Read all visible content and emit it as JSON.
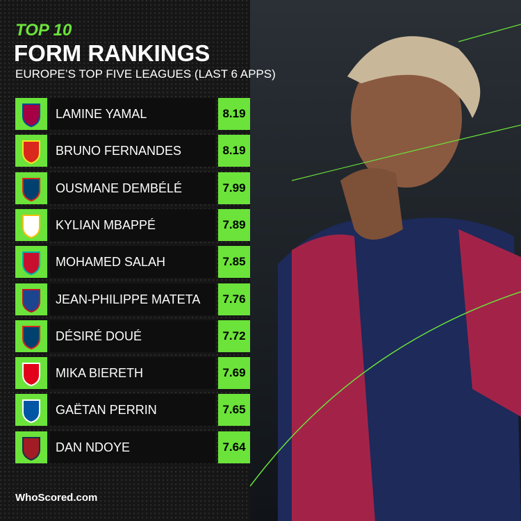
{
  "header": {
    "kicker": "TOP 10",
    "title": "FORM RANKINGS",
    "subtitle": "EUROPE’S TOP FIVE LEAGUES (LAST 6 APPS)"
  },
  "table": {
    "rows": [
      {
        "name": "LAMINE YAMAL",
        "rating": 8.19
      },
      {
        "name": "BRUNO FERNANDES",
        "rating": 8.19
      },
      {
        "name": "OUSMANE DEMBÉLÉ",
        "rating": 7.99
      },
      {
        "name": "KYLIAN MBAPPÉ",
        "rating": 7.89
      },
      {
        "name": "MOHAMED SALAH",
        "rating": 7.85
      },
      {
        "name": "JEAN-PHILIPPE MATETA",
        "rating": 7.76
      },
      {
        "name": "DÉSIRÉ DOUÉ",
        "rating": 7.72
      },
      {
        "name": "MIKA BIERETH",
        "rating": 7.69
      },
      {
        "name": "GAËTAN PERRIN",
        "rating": 7.65
      },
      {
        "name": "DAN NDOYE",
        "rating": 7.64
      }
    ]
  },
  "footer": {
    "brand": "WhoScored.com"
  }
}
